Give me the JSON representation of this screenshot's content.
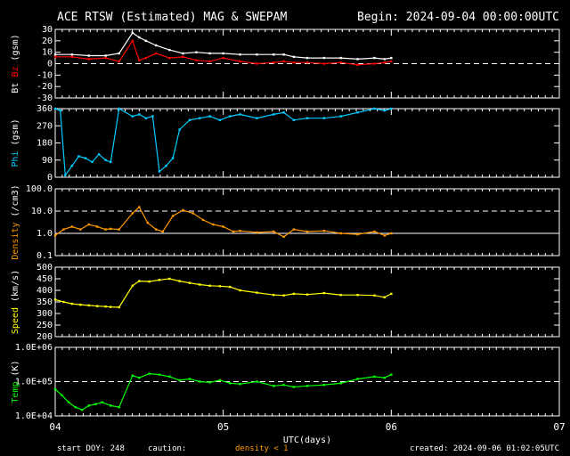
{
  "title": "ACE RTSW (Estimated) MAG & SWEPAM",
  "begin": "Begin: 2024-09-04 00:00:00UTC",
  "footer": {
    "start_doy": "start DOY: 248",
    "caution": "caution:",
    "density_note": "density < 1",
    "created": "created: 2024-09-06 01:02:05UTC",
    "xlabel": "UTC(days)"
  },
  "colors": {
    "background": "#000000",
    "axes": "#ffffff",
    "bt": "#ffffff",
    "bz": "#ff0000",
    "phi": "#00ccff",
    "density": "#ff9900",
    "speed": "#ffff00",
    "temp": "#00ff00"
  },
  "x_ticks": [
    {
      "value": 0,
      "label": "04"
    },
    {
      "value": 1,
      "label": "05"
    },
    {
      "value": 2,
      "label": "06"
    },
    {
      "value": 3,
      "label": "07"
    }
  ],
  "chart_data": [
    {
      "type": "scatter",
      "panel": "magnetic field",
      "ylabel_parts": [
        {
          "text": "Bt ",
          "color": "#ffffff"
        },
        {
          "text": "Bz",
          "color": "#ff0000"
        },
        {
          "text": " (gsm)",
          "color": "#ffffff"
        }
      ],
      "ylim": [
        -30,
        30
      ],
      "yscale": "linear",
      "ticks": [
        {
          "v": 30,
          "l": "30"
        },
        {
          "v": 20,
          "l": "20"
        },
        {
          "v": 10,
          "l": "10"
        },
        {
          "v": 0,
          "l": "0"
        },
        {
          "v": -10,
          "l": "-10"
        },
        {
          "v": -20,
          "l": "-20"
        },
        {
          "v": -30,
          "l": "-30"
        }
      ],
      "dashed_lines": [
        0
      ],
      "solid_lines": [],
      "series": [
        {
          "name": "Bt",
          "color": "#ffffff",
          "x": [
            0.0,
            0.1,
            0.2,
            0.3,
            0.38,
            0.46,
            0.5,
            0.54,
            0.6,
            0.68,
            0.76,
            0.84,
            0.92,
            1.0,
            1.1,
            1.2,
            1.3,
            1.36,
            1.42,
            1.5,
            1.6,
            1.7,
            1.8,
            1.9,
            1.96,
            2.0
          ],
          "y": [
            8,
            8,
            7,
            7,
            9,
            27,
            23,
            20,
            16,
            12,
            9,
            10,
            9,
            9,
            8,
            8,
            8,
            8,
            6,
            5,
            5,
            5,
            4,
            5,
            4,
            5
          ]
        },
        {
          "name": "Bz",
          "color": "#ff0000",
          "x": [
            0.0,
            0.1,
            0.2,
            0.3,
            0.38,
            0.46,
            0.5,
            0.54,
            0.6,
            0.68,
            0.76,
            0.84,
            0.92,
            1.0,
            1.1,
            1.2,
            1.3,
            1.36,
            1.42,
            1.5,
            1.6,
            1.7,
            1.8,
            1.9,
            1.96,
            2.0
          ],
          "y": [
            6,
            6,
            4,
            5,
            2,
            20,
            3,
            5,
            9,
            5,
            6,
            3,
            2,
            5,
            2,
            0,
            1,
            2,
            1,
            1,
            0,
            1,
            -1,
            0,
            1,
            2
          ]
        }
      ]
    },
    {
      "type": "scatter",
      "panel": "phi",
      "ylabel_parts": [
        {
          "text": "Phi",
          "color": "#00ccff"
        },
        {
          "text": " (gsm)",
          "color": "#ffffff"
        }
      ],
      "ylim": [
        0,
        360
      ],
      "yscale": "linear",
      "ticks": [
        {
          "v": 360,
          "l": "360"
        },
        {
          "v": 270,
          "l": "270"
        },
        {
          "v": 180,
          "l": "180"
        },
        {
          "v": 90,
          "l": "90"
        },
        {
          "v": 0,
          "l": "0"
        }
      ],
      "dashed_lines": [],
      "solid_lines": [],
      "series": [
        {
          "name": "Phi",
          "color": "#00ccff",
          "x": [
            0.0,
            0.03,
            0.06,
            0.1,
            0.14,
            0.18,
            0.22,
            0.26,
            0.3,
            0.33,
            0.38,
            0.46,
            0.5,
            0.54,
            0.58,
            0.62,
            0.66,
            0.7,
            0.74,
            0.8,
            0.86,
            0.92,
            0.98,
            1.04,
            1.1,
            1.2,
            1.3,
            1.36,
            1.42,
            1.5,
            1.6,
            1.7,
            1.8,
            1.9,
            1.96,
            2.0
          ],
          "y": [
            360,
            350,
            10,
            60,
            110,
            100,
            80,
            120,
            90,
            80,
            360,
            320,
            330,
            310,
            320,
            30,
            60,
            100,
            250,
            300,
            310,
            320,
            300,
            320,
            330,
            310,
            330,
            340,
            300,
            310,
            310,
            320,
            340,
            360,
            350,
            360
          ]
        }
      ]
    },
    {
      "type": "scatter",
      "panel": "density",
      "ylabel_parts": [
        {
          "text": "Density",
          "color": "#ff9900"
        },
        {
          "text": " (/cm3)",
          "color": "#ffffff"
        }
      ],
      "ylim": [
        0.1,
        100
      ],
      "yscale": "log",
      "ticks": [
        {
          "v": 100,
          "l": "100.0"
        },
        {
          "v": 10,
          "l": "10.0"
        },
        {
          "v": 1,
          "l": "1.0"
        },
        {
          "v": 0.1,
          "l": "0.1"
        }
      ],
      "dashed_lines": [
        10
      ],
      "solid_lines": [
        1
      ],
      "series": [
        {
          "name": "Density",
          "color": "#ff9900",
          "x": [
            0.0,
            0.05,
            0.1,
            0.15,
            0.2,
            0.25,
            0.3,
            0.33,
            0.38,
            0.46,
            0.5,
            0.55,
            0.6,
            0.64,
            0.7,
            0.76,
            0.82,
            0.88,
            0.94,
            1.0,
            1.06,
            1.1,
            1.2,
            1.3,
            1.36,
            1.42,
            1.5,
            1.6,
            1.7,
            1.8,
            1.9,
            1.96,
            2.0
          ],
          "y": [
            0.8,
            1.5,
            2.0,
            1.5,
            2.5,
            2.0,
            1.5,
            1.6,
            1.5,
            8,
            15,
            3,
            1.5,
            1.2,
            6,
            11,
            8,
            4,
            2.5,
            2,
            1.2,
            1.3,
            1.1,
            1.2,
            0.7,
            1.5,
            1.2,
            1.3,
            1,
            0.9,
            1.2,
            0.8,
            1.0
          ]
        }
      ]
    },
    {
      "type": "scatter",
      "panel": "speed",
      "ylabel_parts": [
        {
          "text": "Speed",
          "color": "#ffff00"
        },
        {
          "text": " (km/s)",
          "color": "#ffffff"
        }
      ],
      "ylim": [
        200,
        500
      ],
      "yscale": "linear",
      "ticks": [
        {
          "v": 500,
          "l": "500"
        },
        {
          "v": 450,
          "l": "450"
        },
        {
          "v": 400,
          "l": "400"
        },
        {
          "v": 350,
          "l": "350"
        },
        {
          "v": 300,
          "l": "300"
        },
        {
          "v": 250,
          "l": "250"
        },
        {
          "v": 200,
          "l": "200"
        }
      ],
      "dashed_lines": [],
      "solid_lines": [],
      "series": [
        {
          "name": "Speed",
          "color": "#ffff00",
          "x": [
            0.0,
            0.05,
            0.1,
            0.15,
            0.2,
            0.25,
            0.3,
            0.33,
            0.38,
            0.46,
            0.5,
            0.56,
            0.62,
            0.68,
            0.74,
            0.8,
            0.86,
            0.92,
            0.98,
            1.04,
            1.1,
            1.2,
            1.3,
            1.36,
            1.42,
            1.5,
            1.6,
            1.7,
            1.8,
            1.9,
            1.96,
            2.0
          ],
          "y": [
            360,
            350,
            342,
            338,
            335,
            332,
            330,
            328,
            327,
            420,
            440,
            438,
            445,
            450,
            440,
            432,
            425,
            420,
            418,
            415,
            400,
            390,
            380,
            378,
            385,
            382,
            388,
            380,
            380,
            378,
            370,
            385
          ]
        }
      ]
    },
    {
      "type": "scatter",
      "panel": "temperature",
      "ylabel_parts": [
        {
          "text": "Temp",
          "color": "#00ff00"
        },
        {
          "text": " (K)",
          "color": "#ffffff"
        }
      ],
      "ylim": [
        10000,
        1000000
      ],
      "yscale": "log",
      "ticks": [
        {
          "v": 1000000,
          "l": "1.0E+06"
        },
        {
          "v": 100000,
          "l": "1.0E+05"
        },
        {
          "v": 10000,
          "l": "1.0E+04"
        }
      ],
      "dashed_lines": [
        100000
      ],
      "solid_lines": [],
      "series": [
        {
          "name": "Temp",
          "color": "#00ff00",
          "x": [
            0.0,
            0.04,
            0.08,
            0.12,
            0.16,
            0.2,
            0.24,
            0.28,
            0.33,
            0.38,
            0.46,
            0.5,
            0.56,
            0.62,
            0.68,
            0.74,
            0.8,
            0.86,
            0.92,
            0.98,
            1.04,
            1.1,
            1.2,
            1.3,
            1.36,
            1.42,
            1.5,
            1.6,
            1.7,
            1.8,
            1.9,
            1.96,
            2.0
          ],
          "y": [
            60000,
            40000,
            25000,
            18000,
            15000,
            20000,
            22000,
            25000,
            20000,
            18000,
            150000,
            130000,
            170000,
            160000,
            140000,
            110000,
            120000,
            100000,
            95000,
            110000,
            90000,
            85000,
            100000,
            75000,
            80000,
            70000,
            75000,
            80000,
            90000,
            120000,
            140000,
            130000,
            160000
          ]
        }
      ]
    }
  ]
}
